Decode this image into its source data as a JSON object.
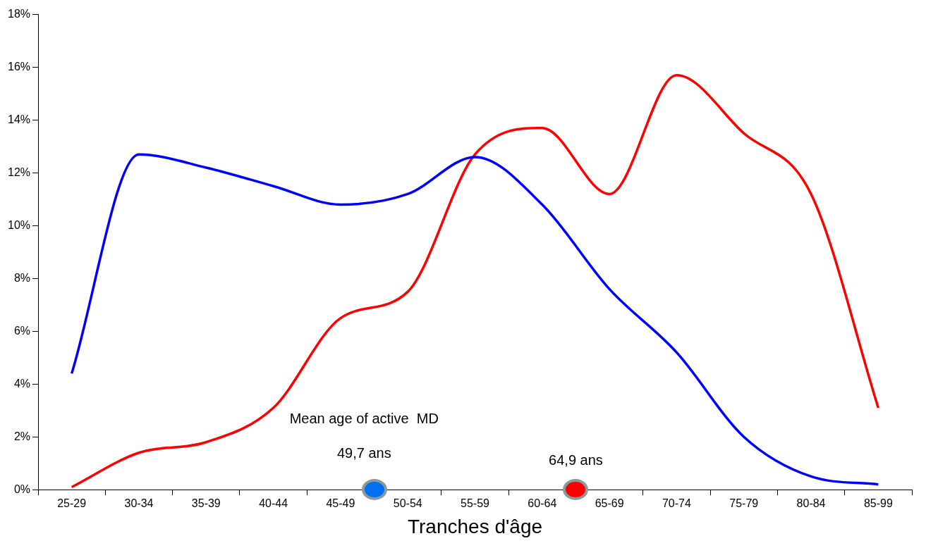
{
  "chart_data": {
    "type": "line",
    "xlabel": "Tranches d'âge",
    "categories": [
      "25-29",
      "30-34",
      "35-39",
      "40-44",
      "45-49",
      "50-54",
      "55-59",
      "60-64",
      "65-69",
      "70-74",
      "75-79",
      "80-84",
      "85-99"
    ],
    "series": [
      {
        "color": "#0000ff",
        "values": [
          4.4,
          12.7,
          12.2,
          11.5,
          10.8,
          11.2,
          12.6,
          10.8,
          7.6,
          5.2,
          2.0,
          0.5,
          0.2
        ]
      },
      {
        "color": "#ff0000",
        "values": [
          0.1,
          1.4,
          1.8,
          3.1,
          6.5,
          7.5,
          12.7,
          13.7,
          11.2,
          15.7,
          13.5,
          11.2,
          3.1
        ]
      }
    ],
    "ylim": [
      0,
      18
    ],
    "yticks": [
      {
        "value": 0,
        "label": "0%"
      },
      {
        "value": 2,
        "label": "2%"
      },
      {
        "value": 4,
        "label": "4%"
      },
      {
        "value": 6,
        "label": "6%"
      },
      {
        "value": 8,
        "label": "8%"
      },
      {
        "value": 10,
        "label": "10%"
      },
      {
        "value": 12,
        "label": "12%"
      },
      {
        "value": 14,
        "label": "14%"
      },
      {
        "value": 16,
        "label": "16%"
      },
      {
        "value": 18,
        "label": "18%"
      }
    ],
    "annotations": [
      "Mean age of active  MD",
      "49,7 ans",
      "64,9 ans"
    ],
    "grid": false,
    "legend": false,
    "marker": "none",
    "line_style": "solid"
  }
}
